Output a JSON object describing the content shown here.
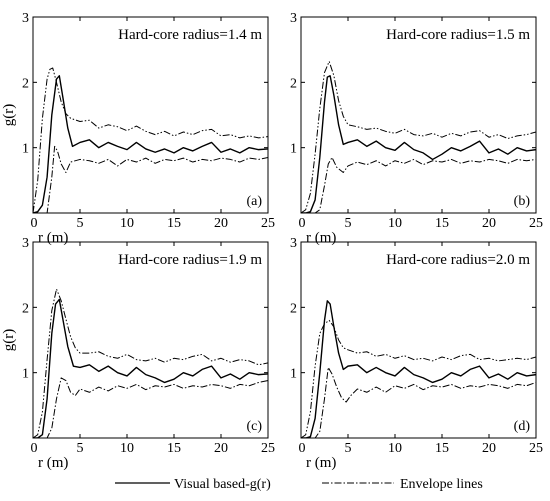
{
  "chart_data": {
    "type": "line",
    "panels": [
      {
        "title": "Hard-core radius=1.4 m",
        "tag": "(a)",
        "xlabel": "r (m)",
        "ylabel": "g(r)",
        "xlim": [
          0,
          25
        ],
        "ylim": [
          0,
          3
        ],
        "xticks": [
          0,
          5,
          10,
          15,
          20,
          25
        ],
        "yticks": [
          1,
          2,
          3
        ],
        "series": [
          {
            "key": "visual",
            "x": [
              0,
              0.5,
              1,
              1.5,
              2,
              2.5,
              2.8,
              3.2,
              3.7,
              4.2,
              5,
              6,
              7,
              8,
              9,
              10,
              11,
              12,
              13,
              14,
              15,
              16,
              17,
              18,
              19,
              20,
              21,
              22,
              23,
              24,
              25
            ],
            "y": [
              0,
              0.02,
              0.12,
              0.55,
              1.5,
              2.05,
              2.1,
              1.75,
              1.3,
              1.02,
              1.08,
              1.12,
              1.0,
              1.08,
              1.02,
              0.97,
              1.08,
              0.98,
              0.93,
              0.98,
              0.92,
              1.0,
              0.95,
              1.02,
              1.08,
              0.93,
              0.98,
              0.92,
              1.0,
              0.97,
              0.98
            ]
          },
          {
            "key": "upper",
            "x": [
              0,
              0.5,
              1,
              1.5,
              1.8,
              2.1,
              2.5,
              3,
              3.5,
              4,
              5,
              6,
              7,
              8,
              9,
              10,
              11,
              12,
              13,
              14,
              15,
              16,
              17,
              18,
              19,
              20,
              21,
              22,
              23,
              24,
              25
            ],
            "y": [
              0,
              0.5,
              1.45,
              2.05,
              2.2,
              2.22,
              2.0,
              1.7,
              1.52,
              1.45,
              1.4,
              1.42,
              1.3,
              1.35,
              1.32,
              1.26,
              1.33,
              1.25,
              1.2,
              1.25,
              1.18,
              1.24,
              1.2,
              1.26,
              1.28,
              1.18,
              1.2,
              1.15,
              1.18,
              1.15,
              1.17
            ]
          },
          {
            "key": "lower",
            "x": [
              0,
              0.5,
              1,
              1.5,
              2,
              2.3,
              2.6,
              3,
              3.5,
              4,
              5,
              6,
              7,
              8,
              9,
              10,
              11,
              12,
              13,
              14,
              15,
              16,
              17,
              18,
              19,
              20,
              21,
              22,
              23,
              24,
              25
            ],
            "y": [
              0,
              0,
              0,
              0,
              0.55,
              1.02,
              0.95,
              0.75,
              0.62,
              0.78,
              0.82,
              0.8,
              0.76,
              0.82,
              0.72,
              0.82,
              0.78,
              0.84,
              0.76,
              0.82,
              0.8,
              0.84,
              0.78,
              0.82,
              0.8,
              0.84,
              0.82,
              0.78,
              0.84,
              0.82,
              0.85
            ]
          }
        ]
      },
      {
        "title": "Hard-core radius=1.5 m",
        "tag": "(b)",
        "xlabel": "r (m)",
        "ylabel": "",
        "xlim": [
          0,
          25
        ],
        "ylim": [
          0,
          3
        ],
        "xticks": [
          0,
          5,
          10,
          15,
          20,
          25
        ],
        "yticks": [
          1,
          2,
          3
        ],
        "series": [
          {
            "key": "visual",
            "x": [
              0,
              0.5,
              1,
              1.5,
              2,
              2.5,
              2.8,
              3.1,
              3.5,
              4,
              4.5,
              5,
              6,
              7,
              8,
              9,
              10,
              11,
              12,
              13,
              14,
              15,
              16,
              17,
              18,
              19,
              20,
              21,
              22,
              23,
              24,
              25
            ],
            "y": [
              0,
              0,
              0.02,
              0.2,
              0.85,
              1.7,
              2.08,
              2.1,
              1.8,
              1.35,
              1.05,
              1.08,
              1.12,
              1.02,
              1.1,
              1.0,
              0.96,
              1.08,
              0.97,
              0.92,
              0.82,
              0.9,
              1.0,
              0.95,
              1.02,
              1.1,
              0.92,
              0.98,
              0.9,
              1.0,
              0.95,
              0.97
            ]
          },
          {
            "key": "upper",
            "x": [
              0,
              0.5,
              1,
              1.5,
              2,
              2.5,
              3,
              3.5,
              4,
              4.5,
              5,
              6,
              7,
              8,
              9,
              10,
              11,
              12,
              13,
              14,
              15,
              16,
              17,
              18,
              19,
              20,
              21,
              22,
              23,
              24,
              25
            ],
            "y": [
              0,
              0.05,
              0.3,
              0.9,
              1.6,
              2.15,
              2.32,
              2.1,
              1.72,
              1.48,
              1.35,
              1.32,
              1.28,
              1.3,
              1.25,
              1.22,
              1.28,
              1.2,
              1.18,
              1.22,
              1.16,
              1.22,
              1.18,
              1.24,
              1.26,
              1.16,
              1.2,
              1.14,
              1.18,
              1.2,
              1.24
            ]
          },
          {
            "key": "lower",
            "x": [
              0,
              0.5,
              1,
              1.5,
              2,
              2.5,
              2.9,
              3.3,
              3.8,
              4.5,
              5,
              6,
              7,
              8,
              9,
              10,
              11,
              12,
              13,
              14,
              15,
              16,
              17,
              18,
              19,
              20,
              21,
              22,
              23,
              24,
              25
            ],
            "y": [
              0,
              0,
              0,
              0,
              0.05,
              0.42,
              0.75,
              0.85,
              0.7,
              0.62,
              0.72,
              0.78,
              0.74,
              0.8,
              0.72,
              0.8,
              0.76,
              0.82,
              0.74,
              0.8,
              0.78,
              0.82,
              0.76,
              0.8,
              0.78,
              0.82,
              0.8,
              0.76,
              0.82,
              0.8,
              0.82
            ]
          }
        ]
      },
      {
        "title": "Hard-core radius=1.9 m",
        "tag": "(c)",
        "xlabel": "r (m)",
        "ylabel": "g(r)",
        "xlim": [
          0,
          25
        ],
        "ylim": [
          0,
          3
        ],
        "xticks": [
          0,
          5,
          10,
          15,
          20,
          25
        ],
        "yticks": [
          1,
          2,
          3
        ],
        "series": [
          {
            "key": "visual",
            "x": [
              0,
              0.5,
              1,
              1.5,
              2,
              2.4,
              2.8,
              3.2,
              3.7,
              4.3,
              5,
              6,
              7,
              8,
              9,
              10,
              11,
              12,
              13,
              14,
              15,
              16,
              17,
              18,
              19,
              20,
              21,
              22,
              23,
              24,
              25
            ],
            "y": [
              0,
              0,
              0.05,
              0.6,
              1.6,
              2.05,
              2.12,
              1.8,
              1.4,
              1.1,
              1.08,
              1.12,
              1.02,
              1.1,
              1.0,
              0.95,
              1.08,
              0.97,
              0.92,
              0.85,
              0.9,
              1.0,
              0.95,
              1.05,
              1.1,
              0.92,
              0.98,
              0.9,
              1.0,
              0.97,
              0.98
            ]
          },
          {
            "key": "upper",
            "x": [
              0,
              0.5,
              1,
              1.5,
              2,
              2.5,
              3,
              3.5,
              4,
              4.5,
              5,
              6,
              7,
              8,
              9,
              10,
              11,
              12,
              13,
              14,
              15,
              16,
              17,
              18,
              19,
              20,
              21,
              22,
              23,
              24,
              25
            ],
            "y": [
              0,
              0.05,
              0.4,
              1.2,
              1.95,
              2.28,
              2.1,
              1.82,
              1.55,
              1.38,
              1.3,
              1.3,
              1.32,
              1.25,
              1.22,
              1.28,
              1.2,
              1.18,
              1.22,
              1.16,
              1.22,
              1.2,
              1.25,
              1.28,
              1.18,
              1.22,
              1.16,
              1.2,
              1.18,
              1.12,
              1.15
            ]
          },
          {
            "key": "lower",
            "x": [
              0,
              0.5,
              1,
              1.5,
              2,
              2.5,
              3,
              3.5,
              4,
              4.5,
              5,
              6,
              7,
              8,
              9,
              10,
              11,
              12,
              13,
              14,
              15,
              16,
              17,
              18,
              19,
              20,
              21,
              22,
              23,
              24,
              25
            ],
            "y": [
              0,
              0,
              0,
              0,
              0.15,
              0.6,
              0.92,
              0.88,
              0.7,
              0.65,
              0.75,
              0.7,
              0.78,
              0.72,
              0.8,
              0.76,
              0.82,
              0.74,
              0.8,
              0.78,
              0.82,
              0.76,
              0.8,
              0.78,
              0.82,
              0.8,
              0.76,
              0.82,
              0.8,
              0.85,
              0.88
            ]
          }
        ]
      },
      {
        "title": "Hard-core radius=2.0 m",
        "tag": "(d)",
        "xlabel": "r (m)",
        "ylabel": "",
        "xlim": [
          0,
          25
        ],
        "ylim": [
          0,
          3
        ],
        "xticks": [
          0,
          5,
          10,
          15,
          20,
          25
        ],
        "yticks": [
          1,
          2,
          3
        ],
        "series": [
          {
            "key": "visual",
            "x": [
              0,
              0.5,
              1,
              1.5,
              2,
              2.5,
              2.8,
              3.1,
              3.5,
              4,
              4.5,
              5,
              6,
              7,
              8,
              9,
              10,
              11,
              12,
              13,
              14,
              15,
              16,
              17,
              18,
              19,
              20,
              21,
              22,
              23,
              24,
              25
            ],
            "y": [
              0,
              0,
              0.02,
              0.3,
              1.0,
              1.8,
              2.1,
              2.05,
              1.7,
              1.3,
              1.05,
              1.1,
              1.12,
              1.0,
              1.08,
              1.0,
              0.95,
              1.08,
              0.97,
              0.92,
              0.85,
              0.9,
              1.0,
              0.95,
              1.05,
              1.1,
              0.92,
              0.98,
              0.9,
              1.0,
              0.95,
              0.97
            ]
          },
          {
            "key": "upper",
            "x": [
              0,
              0.5,
              1,
              1.5,
              2,
              2.5,
              3,
              3.5,
              4,
              4.5,
              5,
              6,
              7,
              8,
              9,
              10,
              11,
              12,
              13,
              14,
              15,
              16,
              17,
              18,
              19,
              20,
              21,
              22,
              23,
              24,
              25
            ],
            "y": [
              0,
              0.05,
              0.4,
              1.1,
              1.6,
              1.75,
              1.8,
              1.7,
              1.5,
              1.38,
              1.35,
              1.3,
              1.32,
              1.25,
              1.28,
              1.22,
              1.26,
              1.2,
              1.22,
              1.18,
              1.24,
              1.2,
              1.26,
              1.28,
              1.2,
              1.22,
              1.18,
              1.2,
              1.22,
              1.2,
              1.24
            ]
          },
          {
            "key": "lower",
            "x": [
              0,
              0.5,
              1,
              1.5,
              2,
              2.5,
              2.9,
              3.3,
              3.8,
              4.3,
              4.8,
              5.3,
              6,
              7,
              8,
              9,
              10,
              11,
              12,
              13,
              14,
              15,
              16,
              17,
              18,
              19,
              20,
              21,
              22,
              23,
              24,
              25
            ],
            "y": [
              0,
              0,
              0,
              0,
              0.1,
              0.6,
              1.08,
              0.98,
              0.78,
              0.62,
              0.55,
              0.65,
              0.75,
              0.7,
              0.78,
              0.7,
              0.8,
              0.76,
              0.82,
              0.74,
              0.8,
              0.78,
              0.82,
              0.76,
              0.8,
              0.78,
              0.82,
              0.8,
              0.76,
              0.82,
              0.8,
              0.85
            ]
          }
        ]
      }
    ],
    "legend": {
      "placement": "bottom-center",
      "entries": [
        {
          "key": "visual",
          "label": "Visual based-g(r)"
        },
        {
          "key": "envelope",
          "label": "Envelope lines"
        }
      ]
    }
  }
}
